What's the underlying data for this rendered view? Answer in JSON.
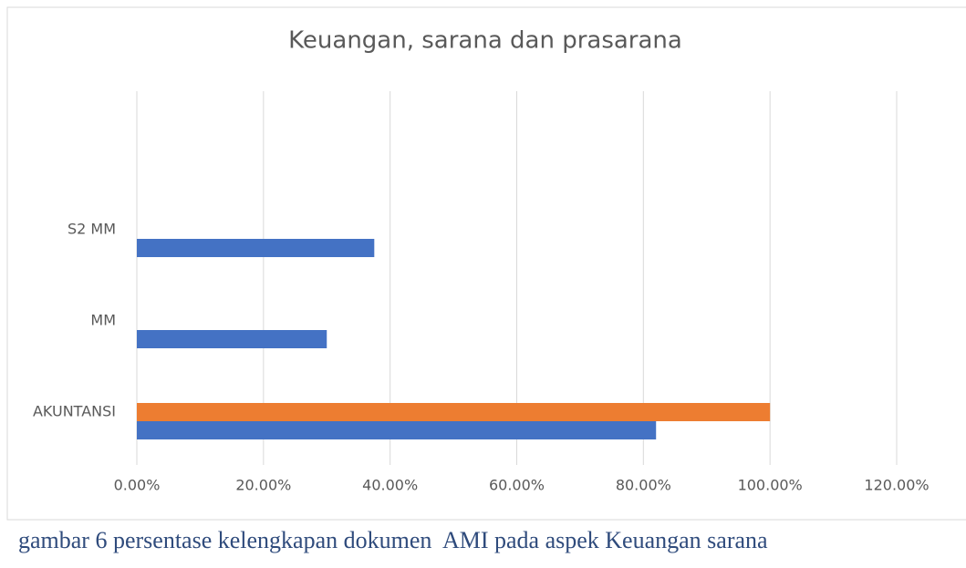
{
  "chart_data": {
    "type": "bar",
    "orientation": "horizontal",
    "title": "Keuangan, sarana dan prasarana",
    "categories": [
      "AKUNTANSI",
      "MM",
      "S2 MM"
    ],
    "series": [
      {
        "color": "#4472c4",
        "values": [
          82,
          30,
          37.5
        ]
      },
      {
        "color": "#ed7d31",
        "values": [
          100,
          null,
          null
        ]
      }
    ],
    "xlim": [
      0,
      120
    ],
    "xticks": [
      {
        "value": 0,
        "label": "0.00%"
      },
      {
        "value": 20,
        "label": "20.00%"
      },
      {
        "value": 40,
        "label": "40.00%"
      },
      {
        "value": 60,
        "label": "60.00%"
      },
      {
        "value": 80,
        "label": "80.00%"
      },
      {
        "value": 100,
        "label": "100.00%"
      },
      {
        "value": 120,
        "label": "120.00%"
      }
    ],
    "grid": true
  },
  "caption": "gambar 6 persentase kelengkapan dokumen  AMI pada aspek Keuangan sarana"
}
